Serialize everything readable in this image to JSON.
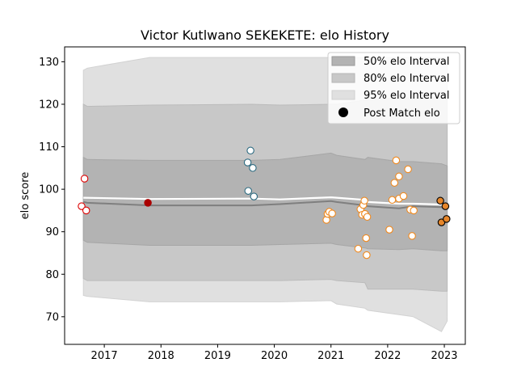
{
  "chart_data": {
    "type": "scatter",
    "title": "Victor Kutlwano SEKEKETE: elo History",
    "xlabel": "",
    "ylabel": "elo score",
    "xlim": [
      2016.3,
      2023.37
    ],
    "ylim": [
      63.5,
      133.5
    ],
    "x_ticks": [
      2017,
      2018,
      2019,
      2020,
      2021,
      2022,
      2023
    ],
    "y_ticks": [
      70,
      80,
      90,
      100,
      110,
      120,
      130
    ],
    "legend": {
      "placement": "top-right",
      "entries": [
        {
          "label": "50% elo Interval",
          "color": "#b3b3b3"
        },
        {
          "label": "80% elo Interval",
          "color": "#c8c8c8"
        },
        {
          "label": "95% elo Interval",
          "color": "#e0e0e0"
        },
        {
          "label": "Post Match elo",
          "color": "#000000"
        }
      ]
    },
    "bands": {
      "x": [
        2016.63,
        2016.7,
        2017.8,
        2019.6,
        2020.1,
        2021.0,
        2021.1,
        2021.6,
        2021.65,
        2022.2,
        2022.45,
        2022.95,
        2023.05
      ],
      "p95_upper": [
        128,
        128.5,
        131,
        131,
        131,
        131,
        131,
        131,
        131,
        131,
        131,
        131,
        131
      ],
      "p80_upper": [
        120,
        119.5,
        119.8,
        120,
        119.8,
        120,
        120,
        121,
        121,
        121.5,
        121.5,
        121.5,
        121.5
      ],
      "p50_upper": [
        107.5,
        107,
        106.8,
        106.8,
        107,
        108.5,
        108,
        107,
        107.5,
        106.5,
        106.5,
        106,
        105.5
      ],
      "median": [
        97,
        96.8,
        96.2,
        96.2,
        96.5,
        97.2,
        97,
        96.2,
        96,
        95.5,
        96,
        95.8,
        95.5
      ],
      "p50_lower": [
        88,
        87.5,
        86.8,
        86.8,
        87,
        87.3,
        87,
        86.2,
        86,
        85.8,
        86,
        85.5,
        85.5
      ],
      "p80_lower": [
        79,
        78.5,
        78.5,
        78.5,
        78.5,
        78.8,
        78.5,
        78,
        76.5,
        76.5,
        76.5,
        76,
        76
      ],
      "p95_lower": [
        75,
        74.8,
        73.5,
        73.5,
        73.5,
        73.8,
        73,
        72,
        71.5,
        70.5,
        70,
        66.5,
        69
      ]
    },
    "mean_line": {
      "x": [
        2016.63,
        2017.8,
        2019.6,
        2020.1,
        2021.0,
        2021.1,
        2021.6,
        2021.65,
        2022.2,
        2022.45,
        2022.95,
        2023.05
      ],
      "y": [
        98,
        97.7,
        97.8,
        97.6,
        98.1,
        98,
        97.5,
        97,
        96.6,
        96.6,
        96.4,
        96.2
      ]
    },
    "series": [
      {
        "name": "",
        "edge": "#dd0000",
        "fill": "#ffffff",
        "points": [
          [
            2016.6,
            96
          ],
          [
            2016.65,
            102.5
          ],
          [
            2016.68,
            95
          ]
        ]
      },
      {
        "name": "",
        "edge": "#aa0000",
        "fill": "#aa0000",
        "points": [
          [
            2017.77,
            96.8
          ]
        ]
      },
      {
        "name": "",
        "edge": "#2b6a80",
        "fill": "#ffffff",
        "points": [
          [
            2019.53,
            106.3
          ],
          [
            2019.58,
            109.1
          ],
          [
            2019.62,
            105
          ],
          [
            2019.54,
            99.6
          ],
          [
            2019.64,
            98.3
          ]
        ]
      },
      {
        "name": "",
        "edge": "#f0891e",
        "fill": "#ffffff",
        "points": [
          [
            2020.92,
            92.8
          ],
          [
            2020.94,
            94.2
          ],
          [
            2020.97,
            94.7
          ],
          [
            2021.02,
            94.3
          ],
          [
            2021.48,
            86
          ],
          [
            2021.52,
            95.3
          ],
          [
            2021.55,
            94
          ],
          [
            2021.57,
            96.3
          ],
          [
            2021.59,
            97.3
          ],
          [
            2021.6,
            94.2
          ],
          [
            2021.62,
            88.5
          ],
          [
            2021.63,
            84.5
          ],
          [
            2021.64,
            93.5
          ],
          [
            2022.03,
            90.5
          ],
          [
            2022.08,
            97.5
          ],
          [
            2022.12,
            101.5
          ],
          [
            2022.15,
            106.8
          ],
          [
            2022.2,
            103
          ],
          [
            2022.2,
            97.8
          ],
          [
            2022.28,
            98.4
          ],
          [
            2022.36,
            104.7
          ],
          [
            2022.4,
            95.2
          ],
          [
            2022.43,
            89
          ],
          [
            2022.46,
            95
          ]
        ]
      },
      {
        "name": "",
        "edge": "#000000",
        "fill": "#e6862a",
        "points": [
          [
            2022.93,
            97.3
          ],
          [
            2022.95,
            92.2
          ],
          [
            2023.02,
            96
          ],
          [
            2023.04,
            93
          ]
        ]
      }
    ]
  }
}
